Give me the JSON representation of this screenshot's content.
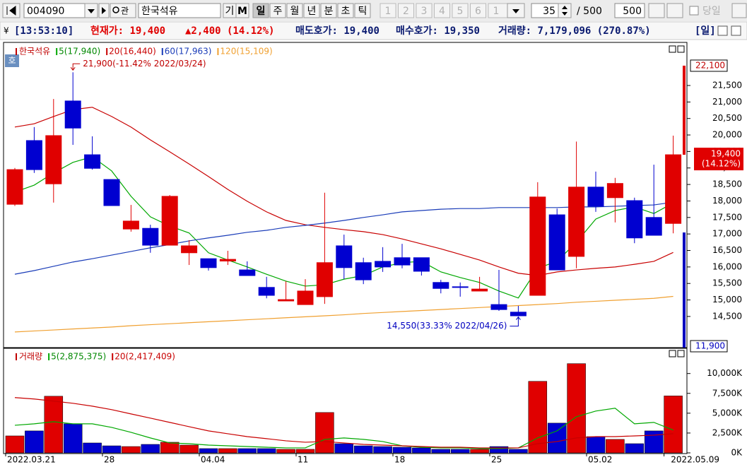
{
  "toolbar": {
    "code": "004090",
    "name": "한국석유",
    "buttons": [
      "기",
      "M"
    ],
    "periods": [
      "일",
      "주",
      "월",
      "년",
      "분",
      "초",
      "틱"
    ],
    "pages": [
      "1",
      "2",
      "3",
      "4",
      "5",
      "6",
      "1"
    ],
    "count": "35",
    "separator": "/ 500",
    "max": "500",
    "today": "당일"
  },
  "info": [
    "[13:53:10]",
    "현재가: 19,400",
    "▲2,400 (14.12%)",
    "매도호가: 19,400",
    "매수호가: 19,350",
    "거래량: 7,179,096 (270.87%)",
    "[일]"
  ],
  "badge": "호",
  "chart_data": [
    {
      "type": "candlestick",
      "name": "한국석유",
      "up_color": "#e00000",
      "down_color": "#0000d0",
      "open": [
        17900,
        19830,
        18520,
        21030,
        19400,
        18650,
        17150,
        17170,
        16660,
        16430,
        16250,
        16180,
        15910,
        15380,
        14970,
        14860,
        15100,
        16640,
        16130,
        16170,
        16280,
        16280,
        15530,
        15400,
        15270,
        14860,
        14630,
        15140,
        17580,
        16320,
        18420,
        18100,
        18010,
        17500,
        17320
      ],
      "high": [
        19000,
        20240,
        21090,
        21900,
        19960,
        18650,
        17880,
        17280,
        18180,
        16810,
        16250,
        16490,
        16170,
        15700,
        15570,
        15630,
        18250,
        16980,
        16280,
        16600,
        16700,
        16280,
        15610,
        15530,
        15700,
        15910,
        14820,
        18570,
        17770,
        19800,
        18890,
        18700,
        18100,
        19100,
        19980
      ],
      "low": [
        17850,
        18850,
        17950,
        19700,
        18950,
        17860,
        17070,
        16430,
        16660,
        16060,
        15890,
        16060,
        15740,
        15050,
        14970,
        14860,
        14880,
        15630,
        15480,
        15850,
        15960,
        15740,
        15200,
        15100,
        15270,
        14670,
        14550,
        15140,
        15910,
        15960,
        17670,
        17350,
        16720,
        16960,
        17020
      ],
      "close": [
        18950,
        18950,
        19980,
        20210,
        18990,
        17860,
        17390,
        16660,
        18140,
        16640,
        15980,
        16230,
        15740,
        15140,
        15010,
        15270,
        16130,
        15980,
        15610,
        16000,
        16060,
        15870,
        15350,
        15390,
        15330,
        14710,
        14520,
        18120,
        15910,
        18420,
        17840,
        18530,
        16880,
        16960,
        19400
      ],
      "series": [
        {
          "name": "5(17,940)",
          "color": "#00a800",
          "values": [
            18270,
            18480,
            18850,
            19170,
            19340,
            18910,
            18140,
            17520,
            17240,
            17030,
            16430,
            16210,
            16000,
            15780,
            15570,
            15420,
            15460,
            15630,
            15740,
            16000,
            16130,
            16170,
            15850,
            15680,
            15530,
            15270,
            15060,
            15960,
            16170,
            16750,
            17450,
            17710,
            17820,
            17620,
            17940
          ]
        },
        {
          "name": "20(16,440)",
          "color": "#c80000",
          "values": [
            20240,
            20340,
            20560,
            20770,
            20840,
            20560,
            20240,
            19850,
            19490,
            19120,
            18740,
            18350,
            17990,
            17670,
            17410,
            17280,
            17200,
            17130,
            17070,
            16980,
            16850,
            16700,
            16550,
            16380,
            16210,
            16000,
            15810,
            15740,
            15850,
            15910,
            15960,
            16000,
            16080,
            16170,
            16440
          ]
        },
        {
          "name": "60(17,963)",
          "color": "#1a3cb8",
          "values": [
            15780,
            15890,
            16020,
            16150,
            16250,
            16360,
            16470,
            16580,
            16680,
            16790,
            16880,
            16960,
            17050,
            17110,
            17200,
            17260,
            17330,
            17410,
            17500,
            17580,
            17670,
            17710,
            17750,
            17770,
            17770,
            17800,
            17800,
            17800,
            17800,
            17820,
            17820,
            17840,
            17860,
            17880,
            17963
          ]
        },
        {
          "name": "120(15,109)",
          "color": "#f0a030",
          "values": [
            14030,
            14060,
            14090,
            14120,
            14150,
            14180,
            14220,
            14250,
            14280,
            14310,
            14340,
            14370,
            14400,
            14430,
            14460,
            14490,
            14520,
            14550,
            14590,
            14620,
            14650,
            14680,
            14710,
            14740,
            14770,
            14800,
            14830,
            14860,
            14890,
            14930,
            14960,
            14990,
            15020,
            15050,
            15109
          ]
        }
      ],
      "ylim": [
        13556,
        22763
      ],
      "yticks": [
        {
          "value": 14500,
          "label": "14,500"
        },
        {
          "value": 15000,
          "label": "15,000"
        },
        {
          "value": 15500,
          "label": "15,500"
        },
        {
          "value": 16000,
          "label": "16,000"
        },
        {
          "value": 16500,
          "label": "16,500"
        },
        {
          "value": 17000,
          "label": "17,000"
        },
        {
          "value": 17500,
          "label": "17,500"
        },
        {
          "value": 18000,
          "label": "18,000"
        },
        {
          "value": 18500,
          "label": "18,500"
        },
        {
          "value": 19000,
          "label": "19,000"
        },
        {
          "value": 19500,
          "label": "19,500"
        },
        {
          "value": 20000,
          "label": "20,000"
        },
        {
          "value": 20500,
          "label": "20,500"
        },
        {
          "value": 21000,
          "label": "21,000"
        },
        {
          "value": 21500,
          "label": "21,500"
        }
      ],
      "annotations": [
        {
          "text": "21,900(-11.42% 2022/03/24)",
          "value": 21900
        },
        {
          "text": "14,550(33.33% 2022/04/26)",
          "value": 14550
        }
      ],
      "right_labels": [
        {
          "value": 22100,
          "label": "22,100"
        },
        {
          "value": 19400,
          "label": "19,400",
          "sub": "(14.12%)"
        },
        {
          "value": 11900,
          "label": "11,900"
        }
      ]
    },
    {
      "type": "bar",
      "name": "거래량",
      "categories": [
        "2022.03.21",
        null,
        null,
        null,
        null,
        "28",
        null,
        null,
        null,
        null,
        "04.04",
        null,
        null,
        null,
        null,
        "11",
        null,
        null,
        null,
        null,
        "18",
        null,
        null,
        null,
        null,
        "25",
        null,
        null,
        null,
        null,
        "05.02",
        null,
        null,
        null,
        "2022.05.09"
      ],
      "values": [
        2140,
        2770,
        7140,
        3660,
        1250,
        890,
        800,
        1070,
        1340,
        980,
        540,
        540,
        540,
        540,
        450,
        450,
        5090,
        1160,
        890,
        800,
        710,
        630,
        450,
        450,
        450,
        800,
        450,
        9020,
        3750,
        11250,
        2050,
        1700,
        1160,
        2770,
        7179
      ],
      "series": [
        {
          "name": "5(2,875,375)",
          "color": "#00a800",
          "values": [
            3480,
            3660,
            3930,
            3660,
            3660,
            3210,
            2590,
            1880,
            1250,
            1160,
            980,
            890,
            800,
            710,
            630,
            630,
            1700,
            1880,
            1700,
            1430,
            890,
            710,
            630,
            630,
            540,
            540,
            630,
            1880,
            2770,
            4550,
            5270,
            5630,
            3660,
            3840,
            2875
          ]
        },
        {
          "name": "20(2,417,409)",
          "color": "#c80000",
          "values": [
            6970,
            6790,
            6520,
            6250,
            5890,
            5450,
            4910,
            4380,
            3840,
            3300,
            2770,
            2410,
            2050,
            1790,
            1520,
            1340,
            1430,
            1250,
            1070,
            980,
            890,
            800,
            710,
            710,
            630,
            630,
            630,
            1160,
            1430,
            1880,
            2050,
            2050,
            2140,
            2230,
            2417
          ]
        }
      ],
      "ylim": [
        0,
        13000
      ],
      "yticks": [
        {
          "value": 0,
          "label": "0K"
        },
        {
          "value": 2500,
          "label": "2,500K"
        },
        {
          "value": 5000,
          "label": "5,000K"
        },
        {
          "value": 7500,
          "label": "7,500K"
        },
        {
          "value": 10000,
          "label": "10,000K"
        }
      ]
    }
  ]
}
